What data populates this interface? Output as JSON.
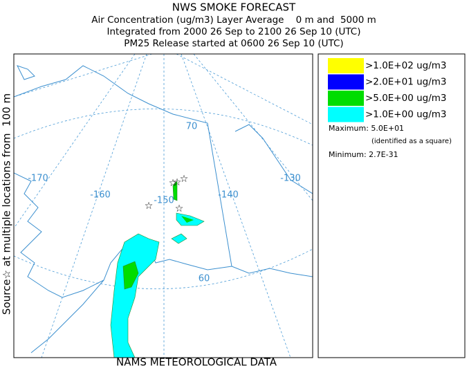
{
  "header": {
    "title": "NWS SMOKE FORECAST",
    "lines": [
      "Air Concentration (ug/m3) Layer Average    0 m and  5000 m",
      "Integrated from 2000 26 Sep to 2100 26 Sep 10 (UTC)",
      "PM25 Release started at 0600 26 Sep 10 (UTC)"
    ]
  },
  "side_label": "Source☆ at multiple locations from  100 m",
  "footer": "NAMS METEOROLOGICAL DATA",
  "map": {
    "grid_labels": [
      "-170",
      "-160",
      "-150",
      "-140",
      "-130",
      "70",
      "60"
    ]
  },
  "legend": {
    "items": [
      {
        "label": ">1.0E+02 ug/m3",
        "color": "#ffff00"
      },
      {
        "label": ">2.0E+01 ug/m3",
        "color": "#0000ff"
      },
      {
        "label": ">5.0E+00 ug/m3",
        "color": "#00dd00"
      },
      {
        "label": ">1.0E+00 ug/m3",
        "color": "#00ffff"
      }
    ],
    "maximum": "Maximum: 5.0E+01",
    "maximum_note": "(identified as a square)",
    "minimum": "Minimum: 2.7E-31"
  }
}
